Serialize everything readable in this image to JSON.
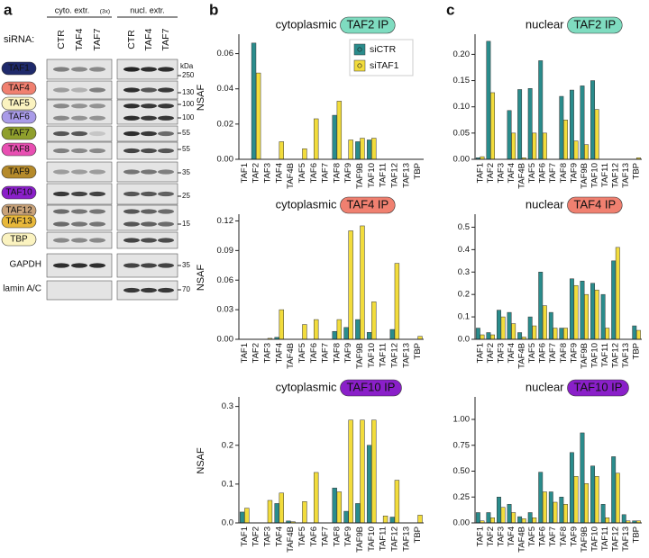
{
  "panel_labels": [
    "a",
    "b",
    "c"
  ],
  "blot": {
    "groups": [
      {
        "label": "cyto. extr.",
        "note": "(3x)"
      },
      {
        "label": "nucl. extr."
      }
    ],
    "sirna_label": "siRNA:",
    "lanes": [
      "CTR",
      "TAF4",
      "TAF7",
      "CTR",
      "TAF4",
      "TAF7"
    ],
    "kda_label": "kDa",
    "strips": [
      {
        "labels": [
          {
            "name": "TAF1",
            "color": "#1f2a6b"
          }
        ],
        "markers": [
          250
        ]
      },
      {
        "labels": [
          {
            "name": "TAF4",
            "color": "#f08070"
          }
        ],
        "markers": [
          130
        ]
      },
      {
        "labels": [
          {
            "name": "TAF5",
            "color": "#fbf3c0"
          },
          {
            "name": "TAF6",
            "color": "#a99be8"
          }
        ],
        "markers": [
          100,
          100
        ]
      },
      {
        "labels": [
          {
            "name": "TAF7",
            "color": "#8f9f2c"
          }
        ],
        "markers": [
          55
        ]
      },
      {
        "labels": [
          {
            "name": "TAF8",
            "color": "#e84fb2"
          }
        ],
        "markers": [
          55
        ]
      },
      {
        "labels": [
          {
            "name": "TAF9",
            "color": "#b58a2a"
          }
        ],
        "markers": [
          35
        ]
      },
      {
        "labels": [
          {
            "name": "TAF10",
            "color": "#8a1fc9"
          }
        ],
        "markers": [
          25
        ]
      },
      {
        "labels": [
          {
            "name": "TAF12",
            "color": "#c9a37a"
          },
          {
            "name": "TAF13",
            "color": "#e8b83a"
          }
        ],
        "markers": [
          15
        ]
      },
      {
        "labels": [
          {
            "name": "TBP",
            "color": "#fbf3c0"
          }
        ],
        "markers": []
      },
      {
        "labels": [
          {
            "name": "GAPDH"
          }
        ],
        "markers": [
          35
        ]
      },
      {
        "labels": [
          {
            "name": "lamin A/C"
          }
        ],
        "markers": [
          70
        ]
      }
    ]
  },
  "chart_data": [
    {
      "type": "bar",
      "title": "cytoplasmic",
      "subtitle": "TAF2 IP",
      "subtitle_color": "#7fdcc0",
      "ylabel": "NSAF",
      "legend": "upper right",
      "categories": [
        "TAF1",
        "TAF2",
        "TAF3",
        "TAF4",
        "TAF4B",
        "TAF5",
        "TAF6",
        "TAF7",
        "TAF8",
        "TAF9",
        "TAF9B",
        "TAF10",
        "TAF11",
        "TAF12",
        "TAF13",
        "TBP"
      ],
      "series": [
        {
          "name": "siCTR",
          "color": "#2a8c8c",
          "values": [
            0,
            0.066,
            0,
            0,
            0,
            0,
            0,
            0,
            0.025,
            0,
            0.01,
            0.011,
            0,
            0,
            0,
            0
          ]
        },
        {
          "name": "siTAF1",
          "color": "#f2dc3c",
          "values": [
            0,
            0.049,
            0,
            0.01,
            0,
            0.006,
            0.023,
            0,
            0.033,
            0.011,
            0.012,
            0.012,
            0,
            0,
            0,
            0
          ]
        }
      ],
      "ylim": [
        0,
        0.07
      ],
      "yticks": [
        {
          "value": 0,
          "label": "0.00"
        },
        {
          "value": 0.02,
          "label": "0.02"
        },
        {
          "value": 0.04,
          "label": "0.04"
        },
        {
          "value": 0.06,
          "label": "0.06"
        }
      ]
    },
    {
      "type": "bar",
      "title": "cytoplasmic",
      "subtitle": "TAF4 IP",
      "subtitle_color": "#f08070",
      "ylabel": "NSAF",
      "categories": [
        "TAF1",
        "TAF2",
        "TAF3",
        "TAF4",
        "TAF4B",
        "TAF5",
        "TAF6",
        "TAF7",
        "TAF8",
        "TAF9",
        "TAF9B",
        "TAF10",
        "TAF11",
        "TAF12",
        "TAF13",
        "TBP"
      ],
      "series": [
        {
          "name": "siCTR",
          "color": "#2a8c8c",
          "values": [
            0,
            0,
            0,
            0.002,
            0,
            0,
            0,
            0,
            0.008,
            0.012,
            0.02,
            0.007,
            0,
            0.01,
            0,
            0
          ]
        },
        {
          "name": "siTAF1",
          "color": "#f2dc3c",
          "values": [
            0,
            0,
            0.001,
            0.03,
            0,
            0.015,
            0.02,
            0,
            0.02,
            0.11,
            0.115,
            0.038,
            0,
            0.077,
            0,
            0.003
          ]
        }
      ],
      "ylim": [
        0,
        0.125
      ],
      "yticks": [
        {
          "value": 0,
          "label": "0.00"
        },
        {
          "value": 0.03,
          "label": "0.03"
        },
        {
          "value": 0.06,
          "label": "0.06"
        },
        {
          "value": 0.09,
          "label": "0.09"
        },
        {
          "value": 0.12,
          "label": "0.12"
        }
      ]
    },
    {
      "type": "bar",
      "title": "cytoplasmic",
      "subtitle": "TAF10 IP",
      "subtitle_color": "#8a1fc9",
      "ylabel": "NSAF",
      "categories": [
        "TAF1",
        "TAF2",
        "TAF3",
        "TAF4",
        "TAF4B",
        "TAF5",
        "TAF6",
        "TAF7",
        "TAF8",
        "TAF9",
        "TAF9B",
        "TAF10",
        "TAF11",
        "TAF12",
        "TAF13",
        "TBP"
      ],
      "series": [
        {
          "name": "siCTR",
          "color": "#2a8c8c",
          "values": [
            0.028,
            0,
            0,
            0.05,
            0.005,
            0,
            0,
            0,
            0.09,
            0.03,
            0.05,
            0.2,
            0,
            0.015,
            0,
            0
          ]
        },
        {
          "name": "siTAF1",
          "color": "#f2dc3c",
          "values": [
            0.038,
            0,
            0.058,
            0.077,
            0.003,
            0.055,
            0.13,
            0,
            0.08,
            0.265,
            0.265,
            0.265,
            0.018,
            0.11,
            0,
            0.02
          ]
        }
      ],
      "ylim": [
        0,
        0.32
      ],
      "yticks": [
        {
          "value": 0,
          "label": "0.0"
        },
        0.1,
        0.2,
        0.3
      ]
    },
    {
      "type": "bar",
      "title": "nuclear",
      "subtitle": "TAF2 IP",
      "subtitle_color": "#7fdcc0",
      "categories": [
        "TAF1",
        "TAF2",
        "TAF3",
        "TAF4",
        "TAF4B",
        "TAF5",
        "TAF6",
        "TAF7",
        "TAF8",
        "TAF9",
        "TAF9B",
        "TAF10",
        "TAF11",
        "TAF12",
        "TAF13",
        "TBP"
      ],
      "series": [
        {
          "name": "siCTR",
          "color": "#2a8c8c",
          "values": [
            0.003,
            0.225,
            0,
            0.093,
            0.133,
            0.135,
            0.188,
            0,
            0.12,
            0.132,
            0.14,
            0.15,
            0,
            0,
            0,
            0
          ]
        },
        {
          "name": "siTAF1",
          "color": "#f2dc3c",
          "values": [
            0.005,
            0.127,
            0,
            0.05,
            0.003,
            0.05,
            0.05,
            0,
            0.075,
            0.035,
            0.028,
            0.095,
            0,
            0,
            0,
            0.003
          ]
        }
      ],
      "ylim": [
        0,
        0.235
      ],
      "yticks": [
        {
          "value": 0,
          "label": "0.00"
        },
        {
          "value": 0.05,
          "label": "0.05"
        },
        {
          "value": 0.1,
          "label": "0.10"
        },
        {
          "value": 0.15,
          "label": "0.15"
        },
        {
          "value": 0.2,
          "label": "0.20"
        }
      ]
    },
    {
      "type": "bar",
      "title": "nuclear",
      "subtitle": "TAF4 IP",
      "subtitle_color": "#f08070",
      "categories": [
        "TAF1",
        "TAF2",
        "TAF3",
        "TAF4",
        "TAF4B",
        "TAF5",
        "TAF6",
        "TAF7",
        "TAF8",
        "TAF9",
        "TAF9B",
        "TAF10",
        "TAF11",
        "TAF12",
        "TAF13",
        "TBP"
      ],
      "series": [
        {
          "name": "siCTR",
          "color": "#2a8c8c",
          "values": [
            0.05,
            0.03,
            0.13,
            0.12,
            0.03,
            0.1,
            0.3,
            0.12,
            0.05,
            0.27,
            0.26,
            0.25,
            0.2,
            0.35,
            0,
            0.06
          ]
        },
        {
          "name": "siTAF1",
          "color": "#f2dc3c",
          "values": [
            0.02,
            0.02,
            0.1,
            0.07,
            0.01,
            0.06,
            0.15,
            0.05,
            0.05,
            0.24,
            0.2,
            0.22,
            0.05,
            0.41,
            0,
            0.04
          ]
        }
      ],
      "ylim": [
        0,
        0.55
      ],
      "yticks": [
        {
          "value": 0,
          "label": "0.0"
        },
        0.1,
        0.2,
        0.3,
        0.4,
        0.5
      ]
    },
    {
      "type": "bar",
      "title": "nuclear",
      "subtitle": "TAF10 IP",
      "subtitle_color": "#8a1fc9",
      "categories": [
        "TAF1",
        "TAF2",
        "TAF3",
        "TAF4",
        "TAF4B",
        "TAF5",
        "TAF6",
        "TAF7",
        "TAF8",
        "TAF9",
        "TAF9B",
        "TAF10",
        "TAF11",
        "TAF12",
        "TAF13",
        "TBP"
      ],
      "series": [
        {
          "name": "siCTR",
          "color": "#2a8c8c",
          "values": [
            0.1,
            0.1,
            0.25,
            0.18,
            0.06,
            0.1,
            0.49,
            0.3,
            0.25,
            0.68,
            0.87,
            0.55,
            0.18,
            0.64,
            0.08,
            0.02
          ]
        },
        {
          "name": "siTAF1",
          "color": "#f2dc3c",
          "values": [
            0.02,
            0.05,
            0.15,
            0.1,
            0.04,
            0.05,
            0.3,
            0.2,
            0.18,
            0.45,
            0.38,
            0.45,
            0.05,
            0.48,
            0.02,
            0.02
          ]
        }
      ],
      "ylim": [
        0,
        1.2
      ],
      "yticks": [
        {
          "value": 0,
          "label": "0.00"
        },
        {
          "value": 0.25,
          "label": "0.25"
        },
        {
          "value": 0.5,
          "label": "0.50"
        },
        {
          "value": 0.75,
          "label": "0.75"
        },
        {
          "value": 1,
          "label": "1.00"
        }
      ]
    }
  ]
}
